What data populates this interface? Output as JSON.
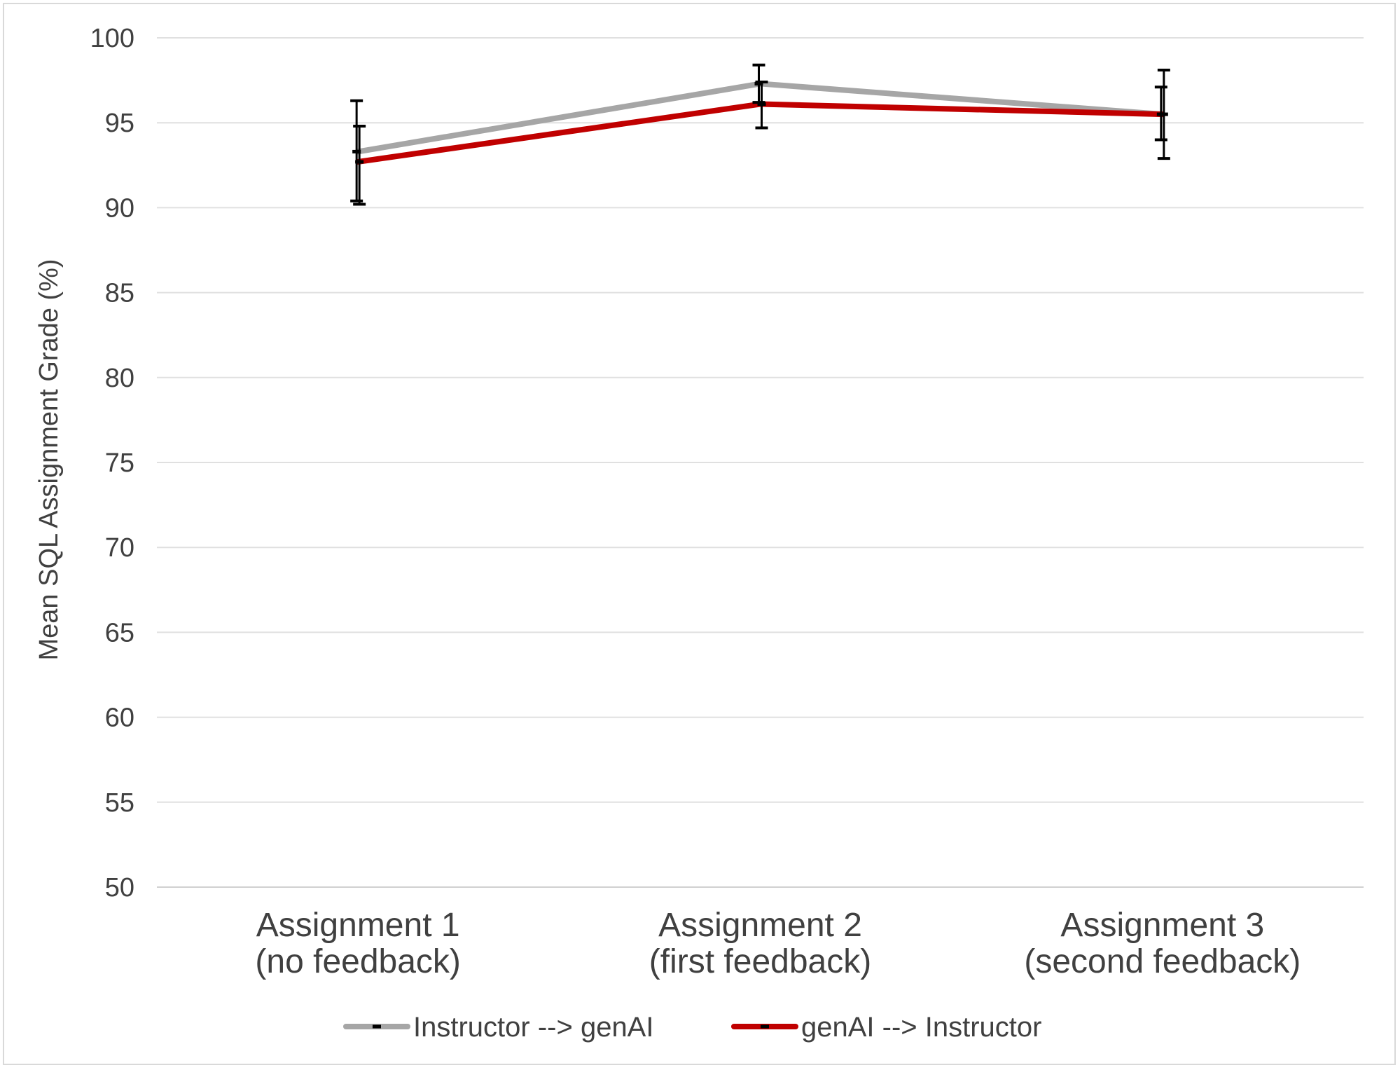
{
  "chart_data": {
    "type": "line",
    "title": "",
    "xlabel": "",
    "ylabel": "Mean SQL Assignment Grade (%)",
    "ylim": [
      50,
      100
    ],
    "yticks": [
      "50",
      "55",
      "60",
      "65",
      "70",
      "75",
      "80",
      "85",
      "90",
      "95",
      "100"
    ],
    "grid": true,
    "legend_position": "bottom",
    "categories": [
      [
        "Assignment 1",
        "(no feedback)"
      ],
      [
        "Assignment 2",
        "(first feedback)"
      ],
      [
        "Assignment 3",
        "(second feedback)"
      ]
    ],
    "series": [
      {
        "name": "Instructor --> genAI",
        "color": "#a6a6a6",
        "values": [
          93.3,
          97.3,
          95.5
        ],
        "error_low": [
          90.4,
          96.2,
          94.0
        ],
        "error_high": [
          96.3,
          98.4,
          97.1
        ]
      },
      {
        "name": "genAI --> Instructor",
        "color": "#c00000",
        "values": [
          92.7,
          96.1,
          95.5
        ],
        "error_low": [
          90.2,
          94.7,
          92.9
        ],
        "error_high": [
          94.8,
          97.4,
          98.1
        ]
      }
    ]
  }
}
